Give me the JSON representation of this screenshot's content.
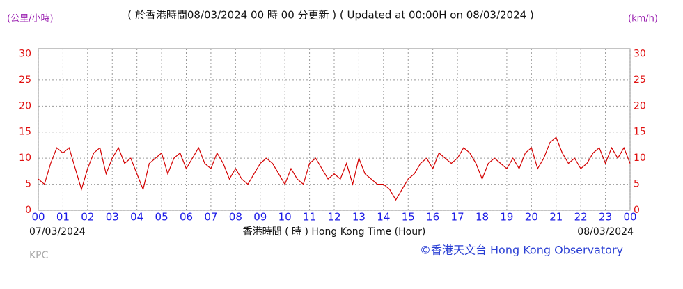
{
  "chart_data": {
    "type": "line",
    "title": "( 於香港時間08/03/2024 00 時 00 分更新 ) ( Updated at 00:00H on 08/03/2024 )",
    "y_label_left": "(公里/小時)",
    "y_label_right": "(km/h)",
    "x_label": "香港時間 ( 時 ) Hong Kong Time (Hour)",
    "start_date": "07/03/2024",
    "end_date": "08/03/2024",
    "station": "KPC",
    "credit": "©香港天文台 Hong Kong Observatory",
    "grid": true,
    "series": [
      {
        "color": "#d40000",
        "x": [
          0,
          0.25,
          0.5,
          0.75,
          1,
          1.25,
          1.5,
          1.75,
          2,
          2.25,
          2.5,
          2.75,
          3,
          3.25,
          3.5,
          3.75,
          4,
          4.25,
          4.5,
          4.75,
          5,
          5.25,
          5.5,
          5.75,
          6,
          6.25,
          6.5,
          6.75,
          7,
          7.25,
          7.5,
          7.75,
          8,
          8.25,
          8.5,
          8.75,
          9,
          9.25,
          9.5,
          9.75,
          10,
          10.25,
          10.5,
          10.75,
          11,
          11.25,
          11.5,
          11.75,
          12,
          12.25,
          12.5,
          12.75,
          13,
          13.25,
          13.5,
          13.75,
          14,
          14.25,
          14.5,
          14.75,
          15,
          15.25,
          15.5,
          15.75,
          16,
          16.25,
          16.5,
          16.75,
          17,
          17.25,
          17.5,
          17.75,
          18,
          18.25,
          18.5,
          18.75,
          19,
          19.25,
          19.5,
          19.75,
          20,
          20.25,
          20.5,
          20.75,
          21,
          21.25,
          21.5,
          21.75,
          22,
          22.25,
          22.5,
          22.75,
          23,
          23.25,
          23.5,
          23.75,
          24
        ],
        "values": [
          6,
          5,
          9,
          12,
          11,
          12,
          8,
          4,
          8,
          11,
          12,
          7,
          10,
          12,
          9,
          10,
          7,
          4,
          9,
          10,
          11,
          7,
          10,
          11,
          8,
          10,
          12,
          9,
          8,
          11,
          9,
          6,
          8,
          6,
          5,
          7,
          9,
          10,
          9,
          7,
          5,
          8,
          6,
          5,
          9,
          10,
          8,
          6,
          7,
          6,
          9,
          5,
          10,
          7,
          6,
          5,
          5,
          4,
          2,
          4,
          6,
          7,
          9,
          10,
          8,
          11,
          10,
          9,
          10,
          12,
          11,
          9,
          6,
          9,
          10,
          9,
          8,
          10,
          8,
          11,
          12,
          8,
          10,
          13,
          14,
          11,
          9,
          10,
          8,
          9,
          11,
          12,
          9,
          12,
          10,
          12,
          9
        ]
      }
    ],
    "xlim": [
      0,
      24
    ],
    "xticks": [
      {
        "value": 0,
        "label": "00"
      },
      {
        "value": 1,
        "label": "01"
      },
      {
        "value": 2,
        "label": "02"
      },
      {
        "value": 3,
        "label": "03"
      },
      {
        "value": 4,
        "label": "04"
      },
      {
        "value": 5,
        "label": "05"
      },
      {
        "value": 6,
        "label": "06"
      },
      {
        "value": 7,
        "label": "07"
      },
      {
        "value": 8,
        "label": "08"
      },
      {
        "value": 9,
        "label": "09"
      },
      {
        "value": 10,
        "label": "10"
      },
      {
        "value": 11,
        "label": "11"
      },
      {
        "value": 12,
        "label": "12"
      },
      {
        "value": 13,
        "label": "13"
      },
      {
        "value": 14,
        "label": "14"
      },
      {
        "value": 15,
        "label": "15"
      },
      {
        "value": 16,
        "label": "16"
      },
      {
        "value": 17,
        "label": "17"
      },
      {
        "value": 18,
        "label": "18"
      },
      {
        "value": 19,
        "label": "19"
      },
      {
        "value": 20,
        "label": "20"
      },
      {
        "value": 21,
        "label": "21"
      },
      {
        "value": 22,
        "label": "22"
      },
      {
        "value": 23,
        "label": "23"
      },
      {
        "value": 24,
        "label": "00"
      }
    ],
    "ylim": [
      0,
      31
    ],
    "yticks": [
      0,
      5,
      10,
      15,
      20,
      25,
      30
    ]
  }
}
